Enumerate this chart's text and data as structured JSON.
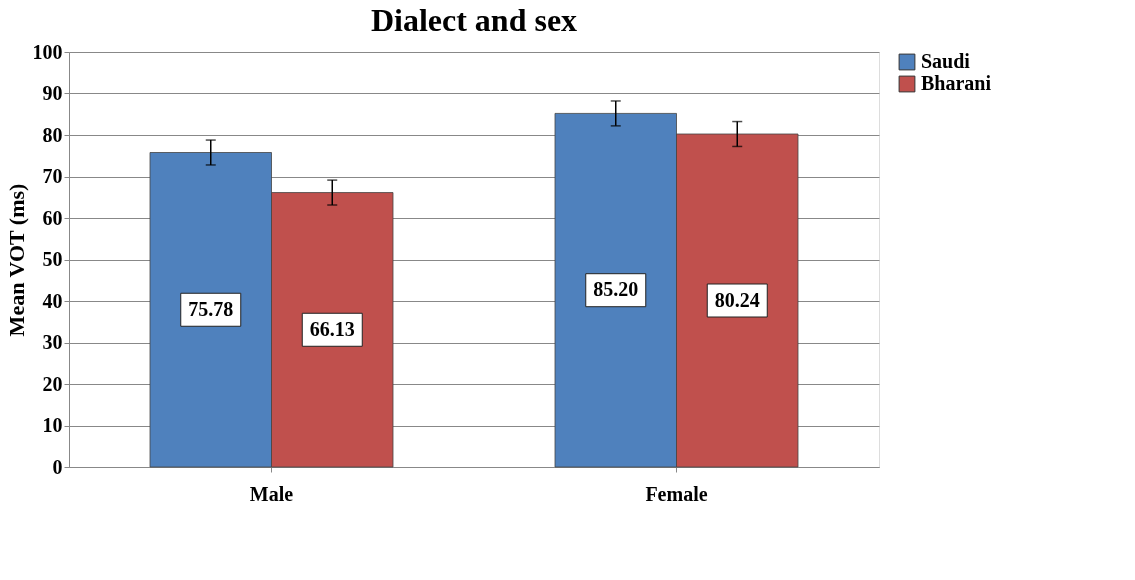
{
  "chart_data": {
    "type": "bar",
    "title": "Dialect and sex",
    "ylabel": "Mean VOT (ms)",
    "categories": [
      "Male",
      "Female"
    ],
    "series": [
      {
        "name": "Saudi",
        "color": "#4f81bd",
        "values": [
          75.78,
          85.2
        ],
        "errors": [
          3,
          3
        ],
        "value_labels": [
          "75.78",
          "85.20"
        ]
      },
      {
        "name": "Bharani",
        "color": "#c0504d",
        "values": [
          66.13,
          80.24
        ],
        "errors": [
          3,
          3
        ],
        "value_labels": [
          "66.13",
          "80.24"
        ]
      }
    ],
    "ylim": [
      0,
      100
    ],
    "yticks": [
      0,
      10,
      20,
      30,
      40,
      50,
      60,
      70,
      80,
      90,
      100
    ],
    "grid": "y",
    "legend": "right"
  }
}
